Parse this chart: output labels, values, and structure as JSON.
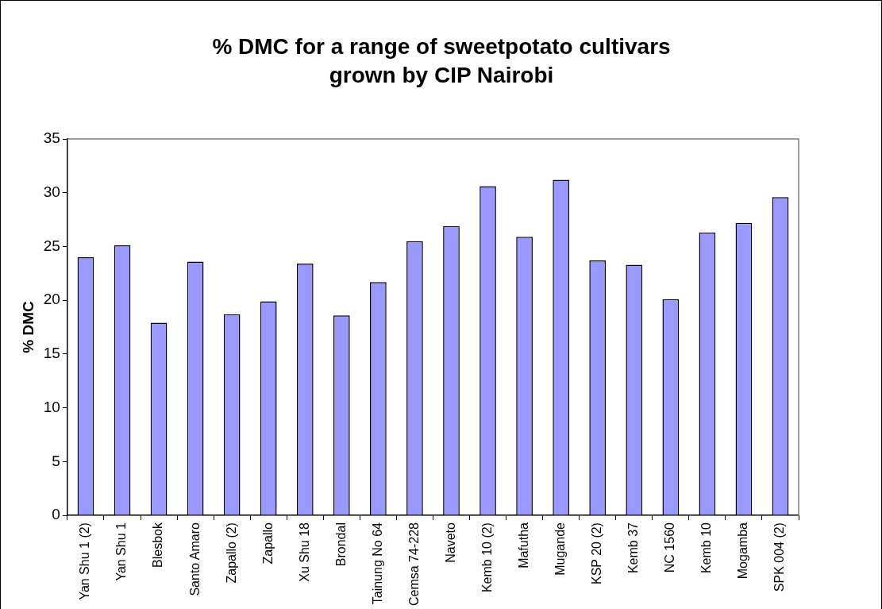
{
  "chart_data": {
    "type": "bar",
    "title": "% DMC for a range of sweetpotato cultivars grown by CIP Nairobi",
    "ylabel": "% DMC",
    "categories": [
      "Yan Shu 1 (2)",
      "Yan Shu 1",
      "Blesbok",
      "Santo Amaro",
      "Zapallo (2)",
      "Zapallo",
      "Xu Shu 18",
      "Brondal",
      "Tainung No 64",
      "Cemsa 74-228",
      "Naveto",
      "Kemb 10 (2)",
      "Mafutha",
      "Mugande",
      "KSP 20 (2)",
      "Kemb 37",
      "NC 1560",
      "Kemb 10",
      "Mogamba",
      "SPK 004 (2)"
    ],
    "values": [
      24.0,
      25.1,
      17.9,
      23.6,
      18.7,
      19.9,
      23.4,
      18.6,
      21.7,
      25.5,
      26.9,
      30.6,
      25.9,
      31.2,
      23.7,
      23.3,
      20.1,
      26.3,
      27.2,
      29.6
    ],
    "color": "#9999ff",
    "ylim": [
      0,
      35
    ],
    "yticks": [
      0,
      5,
      10,
      15,
      20,
      25,
      30,
      35
    ],
    "grid": false,
    "legend": false
  }
}
